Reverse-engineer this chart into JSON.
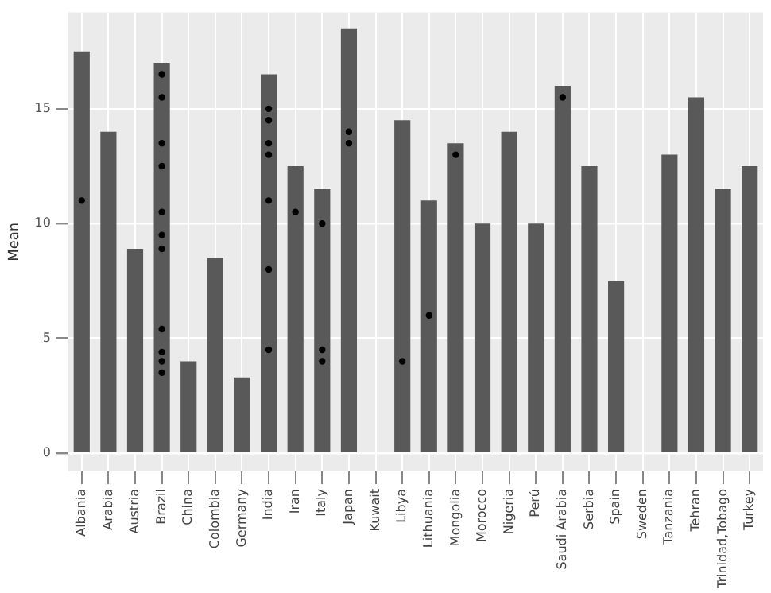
{
  "chart_data": {
    "type": "bar",
    "ylabel": "Mean",
    "categories": [
      "Albania",
      "Arabia",
      "Austria",
      "Brazil",
      "China",
      "Colombia",
      "Germany",
      "India",
      "Iran",
      "Italy",
      "Japan",
      "Kuwait",
      "Libya",
      "Lithuania",
      "Mongolia",
      "Morocco",
      "Nigeria",
      "Perú",
      "Saudi Arabia",
      "Serbia",
      "Spain",
      "Sweden",
      "Tanzania",
      "Tehran",
      "Trinidad,Tobago",
      "Turkey"
    ],
    "series": [
      {
        "color": "#595959",
        "values": [
          17.5,
          14.0,
          8.9,
          17.0,
          4.0,
          8.5,
          3.3,
          16.5,
          12.5,
          11.5,
          18.5,
          0,
          14.5,
          11.0,
          13.5,
          10.0,
          14.0,
          10.0,
          16.0,
          12.5,
          7.5,
          0,
          13.0,
          15.5,
          11.5,
          12.5
        ]
      },
      {
        "type": "scatter",
        "color": "#000000",
        "marker": "circle",
        "x": [
          "Albania",
          "Brazil",
          "Brazil",
          "Brazil",
          "Brazil",
          "Brazil",
          "Brazil",
          "Brazil",
          "Brazil",
          "Brazil",
          "Brazil",
          "Brazil",
          "India",
          "India",
          "India",
          "India",
          "India",
          "India",
          "India",
          "Iran",
          "Italy",
          "Italy",
          "Italy",
          "Japan",
          "Japan",
          "Libya",
          "Lithuania",
          "Mongolia",
          "Saudi Arabia"
        ],
        "values": [
          11.0,
          16.5,
          15.5,
          13.5,
          12.5,
          10.5,
          9.5,
          8.9,
          5.4,
          4.4,
          4.0,
          3.5,
          15.0,
          14.5,
          13.5,
          13.0,
          11.0,
          8.0,
          4.5,
          10.5,
          10.0,
          4.5,
          4.0,
          14.0,
          13.5,
          4.0,
          6.0,
          13.0,
          15.5
        ]
      }
    ],
    "ylim": [
      -0.8,
      19.2
    ],
    "yticks": [
      0,
      5,
      10,
      15
    ],
    "grid": true
  }
}
